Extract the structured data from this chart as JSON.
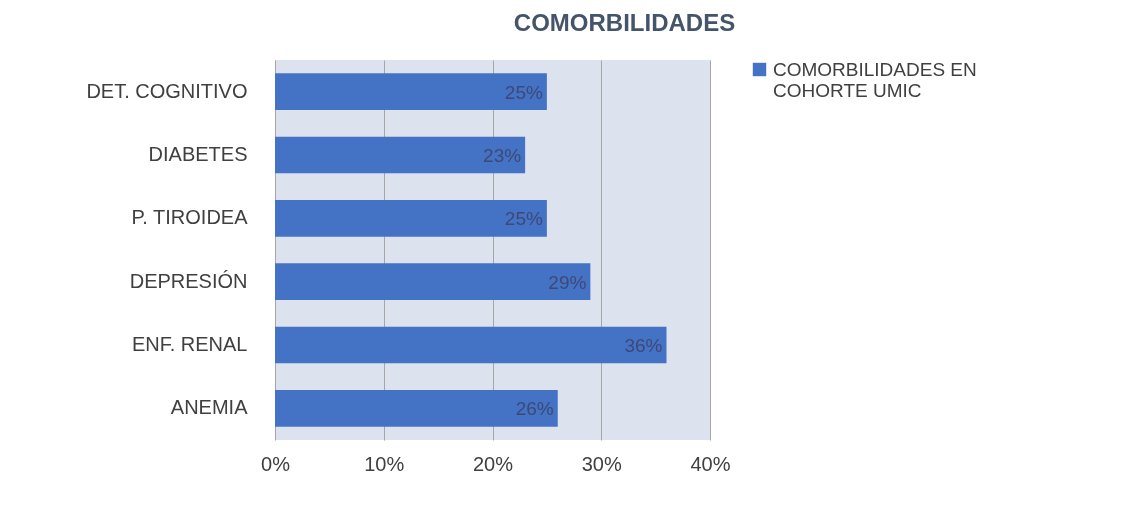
{
  "chart_data": {
    "type": "bar",
    "orientation": "horizontal",
    "title": "COMORBILIDADES",
    "categories": [
      "DET. COGNITIVO",
      "DIABETES",
      "P. TIROIDEA",
      "DEPRESIÓN",
      "ENF. RENAL",
      "ANEMIA"
    ],
    "series": [
      {
        "name": "COMORBILIDADES EN COHORTE UMIC",
        "color": "#4472c4",
        "values": [
          25,
          23,
          25,
          29,
          36,
          26
        ],
        "value_labels": [
          "25%",
          "23%",
          "25%",
          "29%",
          "36%",
          "26%"
        ]
      }
    ],
    "xlim": [
      0,
      40
    ],
    "xticks": [
      {
        "value": 0,
        "label": "0%"
      },
      {
        "value": 10,
        "label": "10%"
      },
      {
        "value": 20,
        "label": "20%"
      },
      {
        "value": 30,
        "label": "30%"
      },
      {
        "value": 40,
        "label": "40%"
      }
    ],
    "grid": "x",
    "legend": "right"
  }
}
